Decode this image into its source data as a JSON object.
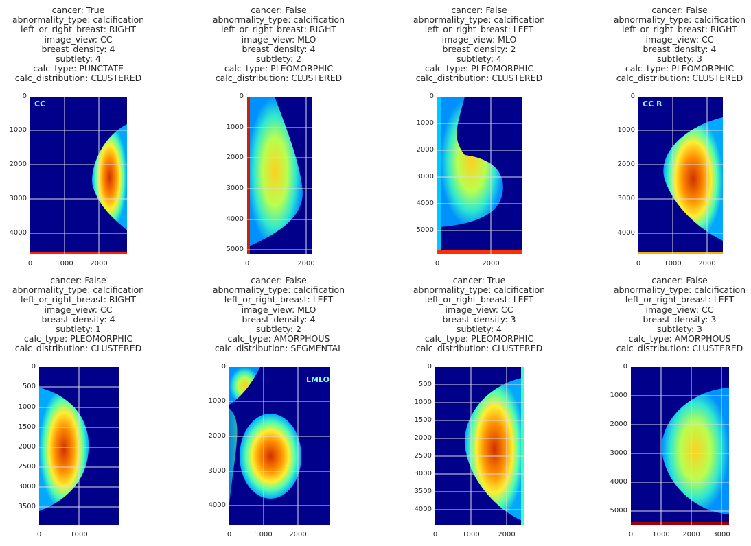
{
  "colormap": "jet",
  "grid_color": "#dcdcdc",
  "panels": [
    {
      "title_lines": [
        "cancer: True",
        "abnormality_type: calcification",
        "left_or_right_breast: RIGHT",
        "image_view: CC",
        "breast_density: 4",
        "subtlety: 4",
        "calc_type: PUNCTATE",
        "calc_distribution: CLUSTERED"
      ],
      "y_ticks": [
        "0",
        "1000",
        "2000",
        "3000",
        "4000"
      ],
      "x_ticks": [
        "0",
        "1000",
        "2000"
      ],
      "overlay_text": "CC"
    },
    {
      "title_lines": [
        "cancer: False",
        "abnormality_type: calcification",
        "left_or_right_breast: RIGHT",
        "image_view: MLO",
        "breast_density: 4",
        "subtlety: 2",
        "calc_type: PLEOMORPHIC",
        "calc_distribution: CLUSTERED"
      ],
      "y_ticks": [
        "0",
        "1000",
        "2000",
        "3000",
        "4000",
        "5000"
      ],
      "x_ticks": [
        "0",
        "2000"
      ],
      "overlay_text": ""
    },
    {
      "title_lines": [
        "cancer: False",
        "abnormality_type: calcification",
        "left_or_right_breast: LEFT",
        "image_view: MLO",
        "breast_density: 2",
        "subtlety: 4",
        "calc_type: PLEOMORPHIC",
        "calc_distribution: CLUSTERED"
      ],
      "y_ticks": [
        "0",
        "1000",
        "2000",
        "3000",
        "4000",
        "5000"
      ],
      "x_ticks": [
        "0",
        "2000"
      ],
      "overlay_text": ""
    },
    {
      "title_lines": [
        "cancer: False",
        "abnormality_type: calcification",
        "left_or_right_breast: RIGHT",
        "image_view: CC",
        "breast_density: 4",
        "subtlety: 3",
        "calc_type: PLEOMORPHIC",
        "calc_distribution: CLUSTERED"
      ],
      "y_ticks": [
        "0",
        "1000",
        "2000",
        "3000",
        "4000"
      ],
      "x_ticks": [
        "0",
        "1000",
        "2000"
      ],
      "overlay_text": "CC R"
    },
    {
      "title_lines": [
        "cancer: False",
        "abnormality_type: calcification",
        "left_or_right_breast: RIGHT",
        "image_view: CC",
        "breast_density: 4",
        "subtlety: 1",
        "calc_type: PLEOMORPHIC",
        "calc_distribution: CLUSTERED"
      ],
      "y_ticks": [
        "0",
        "500",
        "1000",
        "1500",
        "2000",
        "2500",
        "3000",
        "3500"
      ],
      "x_ticks": [
        "0",
        "1000"
      ],
      "overlay_text": ""
    },
    {
      "title_lines": [
        "cancer: False",
        "abnormality_type: calcification",
        "left_or_right_breast: LEFT",
        "image_view: MLO",
        "breast_density: 4",
        "subtlety: 2",
        "calc_type: AMORPHOUS",
        "calc_distribution: SEGMENTAL"
      ],
      "y_ticks": [
        "0",
        "1000",
        "2000",
        "3000",
        "4000"
      ],
      "x_ticks": [
        "0",
        "1000",
        "2000"
      ],
      "overlay_text": "LMLO"
    },
    {
      "title_lines": [
        "cancer: True",
        "abnormality_type: calcification",
        "left_or_right_breast: LEFT",
        "image_view: CC",
        "breast_density: 3",
        "subtlety: 4",
        "calc_type: PLEOMORPHIC",
        "calc_distribution: CLUSTERED"
      ],
      "y_ticks": [
        "0",
        "500",
        "1000",
        "1500",
        "2000",
        "2500",
        "3000",
        "3500",
        "4000"
      ],
      "x_ticks": [
        "0",
        "1000",
        "2000"
      ],
      "overlay_text": ""
    },
    {
      "title_lines": [
        "cancer: False",
        "abnormality_type: calcification",
        "left_or_right_breast: LEFT",
        "image_view: CC",
        "breast_density: 3",
        "subtlety: 3",
        "calc_type: AMORPHOUS",
        "calc_distribution: CLUSTERED"
      ],
      "y_ticks": [
        "0",
        "1000",
        "2000",
        "3000",
        "4000",
        "5000"
      ],
      "x_ticks": [
        "0",
        "1000",
        "2000",
        "3000"
      ],
      "overlay_text": ""
    }
  ]
}
